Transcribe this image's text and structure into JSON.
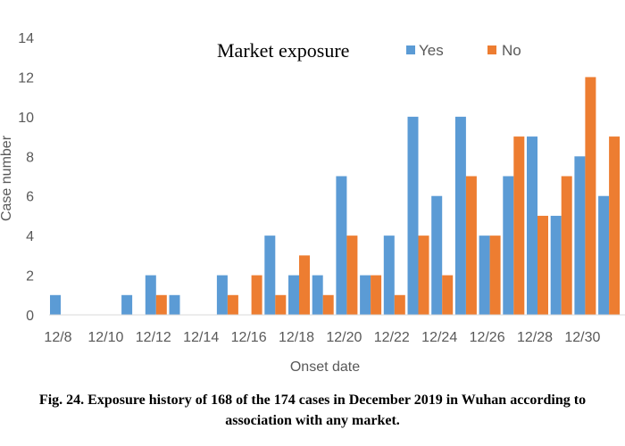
{
  "chart_data": {
    "type": "bar",
    "title": "Market exposure",
    "xlabel": "Onset date",
    "ylabel": "Case number",
    "ylim": [
      0,
      14
    ],
    "yticks": [
      0,
      2,
      4,
      6,
      8,
      10,
      12,
      14
    ],
    "categories": [
      "12/8",
      "12/9",
      "12/10",
      "12/11",
      "12/12",
      "12/13",
      "12/14",
      "12/15",
      "12/16",
      "12/17",
      "12/18",
      "12/19",
      "12/20",
      "12/21",
      "12/22",
      "12/23",
      "12/24",
      "12/25",
      "12/26",
      "12/27",
      "12/28",
      "12/29",
      "12/30",
      "12/31"
    ],
    "xtick_labels": [
      "12/8",
      "12/10",
      "12/12",
      "12/14",
      "12/16",
      "12/18",
      "12/20",
      "12/22",
      "12/24",
      "12/26",
      "12/28",
      "12/30"
    ],
    "series": [
      {
        "name": "Yes",
        "color": "#5B9BD5",
        "values": [
          1,
          0,
          0,
          1,
          2,
          1,
          0,
          2,
          0,
          4,
          2,
          2,
          7,
          2,
          4,
          10,
          6,
          10,
          4,
          7,
          9,
          5,
          8,
          6
        ]
      },
      {
        "name": "No",
        "color": "#ED7D31",
        "values": [
          0,
          0,
          0,
          0,
          1,
          0,
          0,
          1,
          2,
          1,
          3,
          1,
          4,
          2,
          1,
          4,
          2,
          7,
          4,
          9,
          5,
          7,
          12,
          9
        ]
      }
    ],
    "legend_position": "top-right",
    "grid": false
  },
  "caption": {
    "line1": "Fig. 24. Exposure history of 168 of the 174 cases in December 2019 in Wuhan according to",
    "line2": "association with any market."
  }
}
